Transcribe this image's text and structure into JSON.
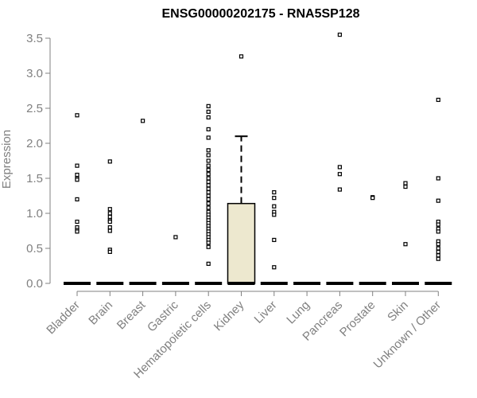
{
  "chart_data": {
    "type": "boxplot",
    "title": "ENSG00000202175 - RNA5SP128",
    "xlabel": "",
    "ylabel": "Expression",
    "ylim": [
      0,
      3.5
    ],
    "yticks": [
      "0.0",
      "0.5",
      "1.0",
      "1.5",
      "2.0",
      "2.5",
      "3.0",
      "3.5"
    ],
    "box_fill": "#ede8cf",
    "categories": [
      "Bladder",
      "Brain",
      "Breast",
      "Gastric",
      "Hematopoietic cells",
      "Kidney",
      "Liver",
      "Lung",
      "Pancreas",
      "Prostate",
      "Skin",
      "Unknown / Other"
    ],
    "boxes": [
      {
        "category": "Bladder",
        "min": 0,
        "q1": 0,
        "median": 0,
        "q3": 0,
        "max": 0,
        "outliers": [
          2.4,
          1.68,
          1.55,
          1.5,
          1.48,
          1.2,
          0.88,
          0.8,
          0.76,
          0.74
        ]
      },
      {
        "category": "Brain",
        "min": 0,
        "q1": 0,
        "median": 0,
        "q3": 0,
        "max": 0,
        "outliers": [
          1.74,
          1.06,
          1.0,
          0.95,
          0.9,
          0.88,
          0.8,
          0.75,
          0.48,
          0.45
        ]
      },
      {
        "category": "Breast",
        "min": 0,
        "q1": 0,
        "median": 0,
        "q3": 0,
        "max": 0,
        "outliers": [
          2.32
        ]
      },
      {
        "category": "Gastric",
        "min": 0,
        "q1": 0,
        "median": 0,
        "q3": 0,
        "max": 0,
        "outliers": [
          0.66
        ]
      },
      {
        "category": "Hematopoietic cells",
        "min": 0,
        "q1": 0,
        "median": 0,
        "q3": 0,
        "max": 0,
        "outliers": [
          2.53,
          2.45,
          2.37,
          2.2,
          2.08,
          1.9,
          1.83,
          1.75,
          1.68,
          1.62,
          1.56,
          1.5,
          1.45,
          1.4,
          1.35,
          1.3,
          1.25,
          1.2,
          1.14,
          1.08,
          1.02,
          0.98,
          0.94,
          0.9,
          0.86,
          0.82,
          0.78,
          0.74,
          0.7,
          0.66,
          0.62,
          0.58,
          0.52,
          0.28
        ]
      },
      {
        "category": "Kidney",
        "min": 0,
        "q1": 0,
        "median": 0,
        "q3": 1.14,
        "max": 2.1,
        "outliers": [
          3.24
        ]
      },
      {
        "category": "Liver",
        "min": 0,
        "q1": 0,
        "median": 0,
        "q3": 0,
        "max": 0,
        "outliers": [
          1.3,
          1.22,
          1.1,
          1.02,
          0.98,
          0.62,
          0.23
        ]
      },
      {
        "category": "Lung",
        "min": 0,
        "q1": 0,
        "median": 0,
        "q3": 0,
        "max": 0,
        "outliers": []
      },
      {
        "category": "Pancreas",
        "min": 0,
        "q1": 0,
        "median": 0,
        "q3": 0,
        "max": 0,
        "outliers": [
          3.55,
          1.66,
          1.56,
          1.34
        ]
      },
      {
        "category": "Prostate",
        "min": 0,
        "q1": 0,
        "median": 0,
        "q3": 0,
        "max": 0,
        "outliers": [
          1.23,
          1.22
        ]
      },
      {
        "category": "Skin",
        "min": 0,
        "q1": 0,
        "median": 0,
        "q3": 0,
        "max": 0,
        "outliers": [
          1.43,
          1.38,
          0.56
        ]
      },
      {
        "category": "Unknown / Other",
        "min": 0,
        "q1": 0,
        "median": 0,
        "q3": 0,
        "max": 0,
        "outliers": [
          2.62,
          1.5,
          1.18,
          0.88,
          0.84,
          0.78,
          0.74,
          0.6,
          0.56,
          0.5,
          0.45,
          0.4,
          0.35
        ]
      }
    ]
  }
}
